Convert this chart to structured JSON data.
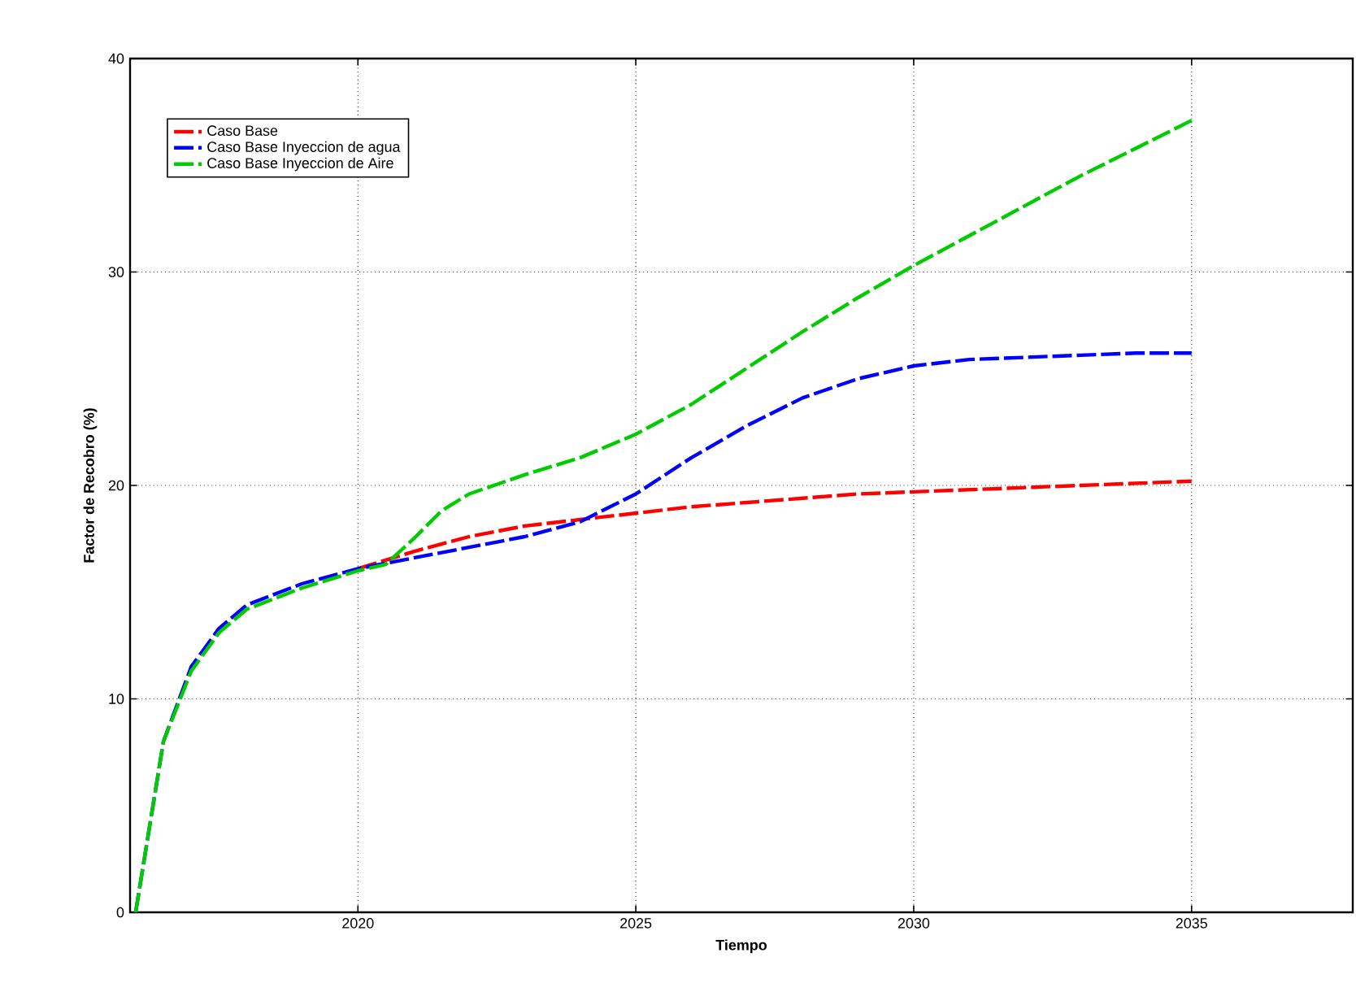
{
  "chart_data": {
    "type": "line",
    "xlabel": "Tiempo",
    "ylabel": "Factor de Recobro (%)",
    "xlim": [
      2015.9,
      2037.9
    ],
    "ylim": [
      0,
      40
    ],
    "xticks": [
      2020,
      2025,
      2030,
      2035
    ],
    "yticks": [
      0,
      10,
      20,
      30,
      40
    ],
    "grid": true,
    "legend": "top left",
    "marker": "none",
    "line_style": "dashed",
    "series": [
      {
        "name": "Caso Base",
        "color": "#ff0000",
        "x": [
          2020,
          2021,
          2022,
          2023,
          2024,
          2025,
          2026,
          2027,
          2028,
          2029,
          2030,
          2031,
          2032,
          2033,
          2034,
          2035
        ],
        "values": [
          16.1,
          16.9,
          17.6,
          18.1,
          18.4,
          18.7,
          19.0,
          19.2,
          19.4,
          19.6,
          19.7,
          19.8,
          19.9,
          20.0,
          20.1,
          20.2
        ]
      },
      {
        "name": "Caso Base Inyeccion de agua",
        "color": "#0000ff",
        "x": [
          2016,
          2016.5,
          2017,
          2017.5,
          2018,
          2019,
          2020,
          2021,
          2022,
          2023,
          2024,
          2025,
          2026,
          2027,
          2028,
          2029,
          2030,
          2031,
          2032,
          2033,
          2034,
          2035
        ],
        "values": [
          0,
          8,
          11.5,
          13.3,
          14.4,
          15.4,
          16.1,
          16.6,
          17.1,
          17.6,
          18.3,
          19.6,
          21.3,
          22.8,
          24.1,
          25.0,
          25.6,
          25.9,
          26.0,
          26.1,
          26.2,
          26.2
        ]
      },
      {
        "name": "Caso Base Inyeccion de Aire",
        "color": "#00cc00",
        "x": [
          2016,
          2016.5,
          2017,
          2017.5,
          2018,
          2019,
          2020,
          2020.5,
          2021,
          2021.5,
          2022,
          2023,
          2024,
          2025,
          2026,
          2027,
          2028,
          2029,
          2030,
          2031,
          2032,
          2033,
          2034,
          2035
        ],
        "values": [
          0,
          8,
          11.3,
          13.1,
          14.2,
          15.2,
          16.0,
          16.3,
          17.5,
          18.8,
          19.6,
          20.5,
          21.3,
          22.4,
          23.8,
          25.5,
          27.2,
          28.8,
          30.3,
          31.7,
          33.1,
          34.5,
          35.8,
          37.1
        ]
      }
    ]
  }
}
